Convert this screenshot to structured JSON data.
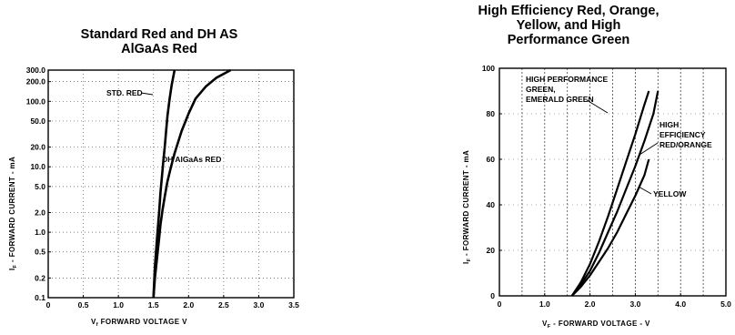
{
  "chart_data": [
    {
      "type": "line",
      "title": "Standard Red and DH AS AlGaAs Red",
      "title_lines": [
        "Standard Red and DH AS",
        "AlGaAs Red"
      ],
      "xlabel": "Vₓ  FORWARD VOLTAGE   V",
      "ylabel": "Iₓ - FORWARD CURRENT - mA",
      "xlabel_main": "V",
      "xlabel_sub": "f",
      "xlabel_rest": "FORWARD VOLTAGE    V",
      "ylabel_main": "I",
      "ylabel_sub": "F",
      "ylabel_rest": " - FORWARD CURRENT - mA",
      "xlim": [
        0,
        3.5
      ],
      "ylim": [
        0.1,
        300
      ],
      "yscale": "log",
      "grid": true,
      "x_ticks": [
        0,
        0.5,
        1.0,
        1.5,
        2.0,
        2.5,
        3.0,
        3.5
      ],
      "x_tick_labels": [
        "0",
        "0.5",
        "1.0",
        "1.5",
        "2.0",
        "2.5",
        "3.0",
        "3.5"
      ],
      "y_ticks": [
        0.1,
        0.2,
        0.5,
        1.0,
        2.0,
        5.0,
        10.0,
        20.0,
        50.0,
        100.0,
        200.0,
        300.0
      ],
      "y_tick_labels": [
        "0.1",
        "0.2",
        "0.5",
        "1.0",
        "2.0",
        "5.0",
        "10.0",
        "20.0",
        "50.0",
        "100.0",
        "200.0",
        "300.0"
      ],
      "series": [
        {
          "name": "STD. RED",
          "x": [
            1.5,
            1.52,
            1.55,
            1.58,
            1.6,
            1.62,
            1.64,
            1.66,
            1.68,
            1.7,
            1.73,
            1.76,
            1.8
          ],
          "y": [
            0.1,
            0.3,
            0.8,
            2.0,
            4.0,
            7.0,
            12.0,
            20.0,
            35.0,
            60.0,
            110.0,
            180.0,
            300.0
          ]
        },
        {
          "name": "DH AlGaAs RED",
          "x": [
            1.5,
            1.52,
            1.55,
            1.58,
            1.6,
            1.63,
            1.66,
            1.7,
            1.75,
            1.8,
            1.9,
            2.0,
            2.1,
            2.25,
            2.4,
            2.6
          ],
          "y": [
            0.1,
            0.2,
            0.4,
            0.8,
            1.3,
            2.2,
            3.5,
            6.0,
            10.0,
            16.0,
            35.0,
            65.0,
            110.0,
            170.0,
            230.0,
            300.0
          ]
        }
      ]
    },
    {
      "type": "line",
      "title": "High Efficiency Red, Orange, Yellow, and High Performance Green",
      "title_lines": [
        "High Efficiency Red, Orange,",
        "Yellow, and High",
        "Performance Green"
      ],
      "xlabel_main": "V",
      "xlabel_sub": "F",
      "xlabel_rest": " - FORWARD VOLTAGE - V",
      "ylabel_main": "I",
      "ylabel_sub": "F",
      "ylabel_rest": " - FORWARD CURRENT - mA",
      "xlim": [
        0,
        5.0
      ],
      "ylim": [
        0,
        100
      ],
      "grid": true,
      "x_ticks": [
        0,
        1.0,
        2.0,
        3.0,
        4.0,
        5.0
      ],
      "x_tick_labels": [
        "0",
        "1.0",
        "2.0",
        "3.0",
        "4.0",
        "5.0"
      ],
      "y_ticks": [
        0,
        20,
        40,
        60,
        80,
        100
      ],
      "y_tick_labels": [
        "0",
        "20",
        "40",
        "60",
        "80",
        "100"
      ],
      "series": [
        {
          "name": "HIGH PERFORMANCE GREEN, EMERALD GREEN",
          "label_lines": [
            "HIGH PERFORMANCE",
            "GREEN,",
            "EMERALD GREEN"
          ],
          "x": [
            1.6,
            1.8,
            2.0,
            2.2,
            2.4,
            2.6,
            2.8,
            3.0,
            3.2,
            3.3
          ],
          "y": [
            0,
            6,
            14,
            24,
            35,
            47,
            59,
            71,
            84,
            90
          ]
        },
        {
          "name": "HIGH EFFICIENCY RED/ORANGE",
          "label_lines": [
            "HIGH",
            "EFFICIENCY",
            "RED/ORANGE"
          ],
          "x": [
            1.6,
            1.8,
            2.0,
            2.2,
            2.4,
            2.6,
            2.8,
            3.0,
            3.2,
            3.4,
            3.5
          ],
          "y": [
            0,
            5,
            11,
            19,
            28,
            37,
            47,
            57,
            68,
            80,
            90
          ]
        },
        {
          "name": "YELLOW",
          "label_lines": [
            "YELLOW"
          ],
          "x": [
            1.6,
            1.8,
            2.0,
            2.2,
            2.4,
            2.6,
            2.8,
            3.0,
            3.2,
            3.3
          ],
          "y": [
            0,
            4,
            9,
            15,
            21,
            28,
            36,
            44,
            53,
            60
          ]
        }
      ]
    }
  ]
}
